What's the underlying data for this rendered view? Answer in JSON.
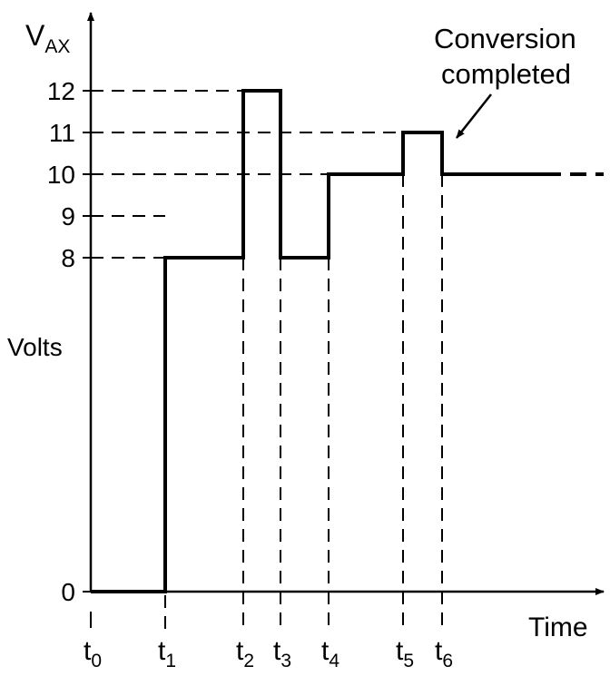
{
  "chart_data": {
    "type": "line",
    "title": "",
    "ylabel": "Volts",
    "ylabel_symbol": {
      "main": "V",
      "sub": "AX"
    },
    "xlabel": "Time",
    "y_ticks": [
      "0",
      "8",
      "9",
      "10",
      "11",
      "12"
    ],
    "x_ticks": [
      {
        "main": "t",
        "sub": "0"
      },
      {
        "main": "t",
        "sub": "1"
      },
      {
        "main": "t",
        "sub": "2"
      },
      {
        "main": "t",
        "sub": "3"
      },
      {
        "main": "t",
        "sub": "4"
      },
      {
        "main": "t",
        "sub": "5"
      },
      {
        "main": "t",
        "sub": "6"
      }
    ],
    "series": [
      {
        "step": "post",
        "x": [
          "t0",
          "t1",
          "t2",
          "t3",
          "t4",
          "t5",
          "t6"
        ],
        "y": [
          0,
          8,
          12,
          8,
          10,
          11,
          10
        ]
      }
    ],
    "annotation": {
      "line1": "Conversion",
      "line2": "completed",
      "target": "t6"
    },
    "grid": "dashed reference lines at 8, 9, 10, 11, 12 and at t0–t6",
    "colors": {
      "line": "#000000",
      "background": "#ffffff"
    }
  }
}
